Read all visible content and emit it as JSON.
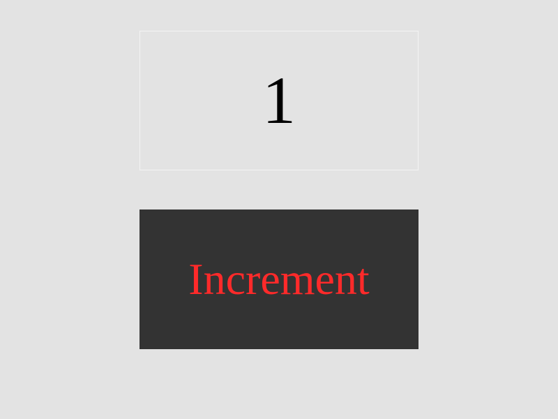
{
  "counter": {
    "value": "1"
  },
  "increment_button": {
    "label": "Increment"
  },
  "colors": {
    "background": "#e3e3e3",
    "button_background": "#333333",
    "button_text": "#ff2a2a",
    "counter_text": "#000000",
    "counter_border": "#f4f4f4"
  }
}
